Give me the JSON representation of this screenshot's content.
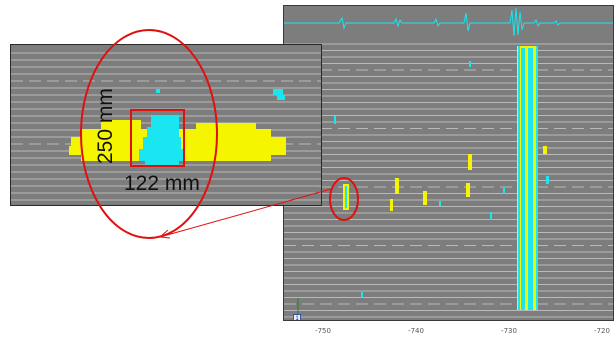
{
  "scan": {
    "x_ticks": [
      "-750",
      "-740",
      "-730",
      "-720"
    ],
    "marker_label": "1"
  },
  "zoom": {
    "width_label": "122 mm",
    "height_label": "250 mm"
  },
  "colors": {
    "background": "#7d7d7d",
    "scan_line": "#b9b9b9",
    "signal_yellow": "#f5f500",
    "signal_cyan": "#19e6f0",
    "annotation_red": "#e01010"
  }
}
